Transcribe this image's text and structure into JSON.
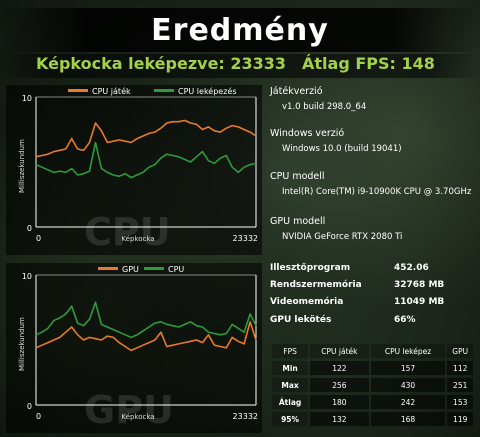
{
  "title": "Eredmény",
  "summary": {
    "frames_rendered": "Képkocka leképezve: 23333",
    "avg_fps": "Átlag FPS: 148"
  },
  "chart_cpu_watermark": "CPU",
  "chart_gpu_watermark": "GPU",
  "info": [
    {
      "label": "Játékverzió",
      "value": "v1.0 build 298.0_64"
    },
    {
      "label": "Windows verzió",
      "value": "Windows 10.0 (build 19041)"
    },
    {
      "label": "CPU modell",
      "value": "Intel(R) Core(TM) i9-10900K CPU @ 3.70GHz"
    },
    {
      "label": "GPU modell",
      "value": "NVIDIA GeForce RTX 2080 Ti"
    }
  ],
  "stats": [
    {
      "label": "Illesztőprogram",
      "value": "452.06"
    },
    {
      "label": "Rendszermemória",
      "value": "32768 MB"
    },
    {
      "label": "Videomemória",
      "value": "11049 MB"
    },
    {
      "label": "GPU lekötés",
      "value": "66%"
    }
  ],
  "fps_table": {
    "headers": [
      "FPS",
      "CPU játék",
      "CPU leképez",
      "GPU"
    ],
    "rows": [
      [
        "Min",
        "122",
        "157",
        "112"
      ],
      [
        "Max",
        "256",
        "430",
        "251"
      ],
      [
        "Átlag",
        "180",
        "242",
        "153"
      ],
      [
        "95%",
        "132",
        "168",
        "119"
      ]
    ]
  },
  "colors": {
    "orange": "#e87a2a",
    "green": "#2e9a3c",
    "accent": "#a4d04a"
  },
  "chart_data": [
    {
      "type": "line",
      "ylabel": "Milliszekundum",
      "xlabel": "Képkocka",
      "x_ticks": [
        "0",
        "23332"
      ],
      "y_ticks": [
        "10",
        "0"
      ],
      "ylim": [
        0,
        10
      ],
      "xlim": [
        0,
        23332
      ],
      "series": [
        {
          "name": "CPU játék",
          "color": "#e87a2a",
          "values": [
            5.4,
            5.5,
            5.6,
            5.8,
            5.9,
            6.0,
            6.8,
            6.0,
            5.9,
            6.5,
            8.0,
            7.4,
            6.5,
            6.6,
            6.7,
            6.6,
            6.5,
            6.8,
            7.0,
            7.2,
            7.3,
            7.6,
            8.0,
            8.1,
            8.1,
            8.2,
            8.0,
            7.9,
            7.5,
            7.7,
            7.4,
            7.3,
            7.6,
            7.8,
            7.7,
            7.5,
            7.3,
            7.0
          ]
        },
        {
          "name": "CPU leképezés",
          "color": "#2e9a3c",
          "values": [
            4.8,
            4.6,
            4.4,
            4.2,
            4.3,
            4.2,
            4.5,
            4.0,
            4.1,
            4.3,
            6.5,
            4.5,
            4.2,
            4.0,
            3.9,
            4.1,
            3.8,
            4.0,
            4.2,
            4.6,
            4.8,
            5.3,
            5.6,
            5.5,
            5.4,
            5.2,
            5.0,
            5.4,
            5.8,
            5.1,
            4.9,
            5.3,
            5.5,
            4.6,
            4.2,
            4.6,
            4.8,
            4.9
          ]
        }
      ]
    },
    {
      "type": "line",
      "ylabel": "Milliszekundum",
      "xlabel": "Képkocka",
      "x_ticks": [
        "0",
        "23332"
      ],
      "y_ticks": [
        "10",
        "0"
      ],
      "ylim": [
        0,
        10
      ],
      "xlim": [
        0,
        23332
      ],
      "series": [
        {
          "name": "GPU",
          "color": "#e87a2a",
          "values": [
            4.4,
            4.6,
            4.8,
            5.0,
            5.2,
            5.6,
            6.0,
            5.4,
            5.0,
            5.2,
            5.1,
            5.0,
            5.3,
            5.2,
            4.8,
            4.5,
            4.2,
            4.4,
            4.6,
            4.8,
            5.0,
            5.6,
            4.5,
            4.6,
            4.7,
            4.8,
            4.9,
            5.0,
            4.8,
            5.4,
            4.6,
            4.5,
            4.4,
            5.2,
            4.9,
            4.7,
            6.4,
            5.0
          ]
        },
        {
          "name": "CPU",
          "color": "#2e9a3c",
          "values": [
            5.4,
            5.6,
            5.9,
            6.5,
            6.7,
            7.0,
            7.6,
            6.3,
            6.1,
            6.6,
            7.9,
            6.2,
            6.0,
            5.8,
            5.6,
            5.4,
            5.2,
            5.4,
            5.7,
            6.0,
            6.3,
            6.4,
            6.2,
            6.1,
            6.0,
            6.2,
            6.4,
            6.1,
            6.0,
            5.6,
            5.5,
            5.4,
            5.5,
            6.2,
            5.9,
            5.6,
            7.0,
            6.1
          ]
        }
      ]
    }
  ]
}
